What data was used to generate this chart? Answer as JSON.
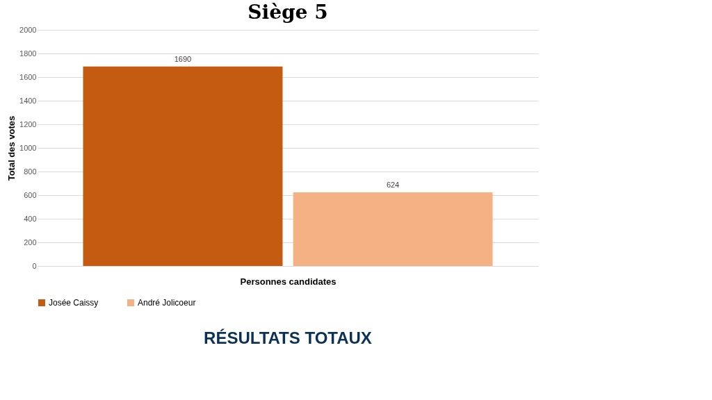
{
  "chart_data": {
    "type": "bar",
    "title": "Siège 5",
    "xlabel": "Personnes candidates",
    "ylabel": "Total des votes",
    "categories": [
      null
    ],
    "series": [
      {
        "name": "Josée Caissy",
        "color": "#c55a11",
        "values": [
          1690
        ]
      },
      {
        "name": "André Jolicoeur",
        "color": "#f4b183",
        "values": [
          624
        ]
      }
    ],
    "ylim": [
      0,
      2000
    ],
    "yticks": [
      0,
      200,
      400,
      600,
      800,
      1000,
      1200,
      1400,
      1600,
      1800,
      2000
    ],
    "grid": "y",
    "legend": "bottom",
    "data_labels": true,
    "annotations": [
      "RÉSULTATS TOTAUX"
    ]
  }
}
